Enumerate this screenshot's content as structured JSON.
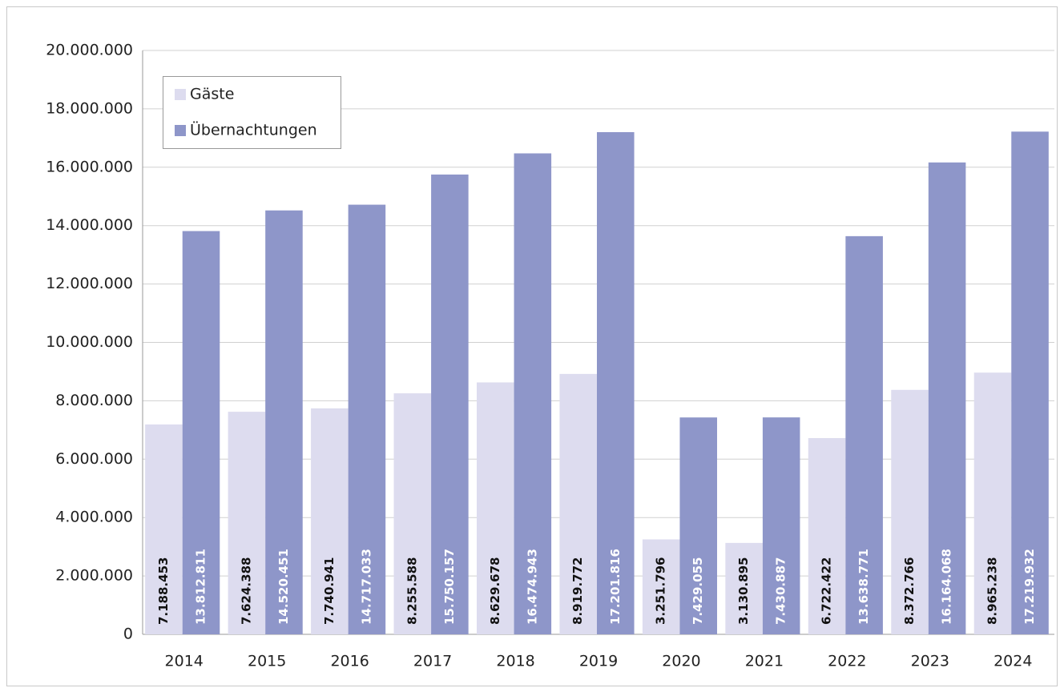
{
  "chart_data": {
    "type": "bar",
    "categories": [
      "2014",
      "2015",
      "2016",
      "2017",
      "2018",
      "2019",
      "2020",
      "2021",
      "2022",
      "2023",
      "2024"
    ],
    "series": [
      {
        "name": "Gäste",
        "color": "#dddcef",
        "values": [
          7188453,
          7624388,
          7740941,
          8255588,
          8629678,
          8919772,
          3251796,
          3130895,
          6722422,
          8372766,
          8965238
        ],
        "value_labels": [
          "7.188.453",
          "7.624.388",
          "7.740.941",
          "8.255.588",
          "8.629.678",
          "8.919.772",
          "3.251.796",
          "3.130.895",
          "6.722.422",
          "8.372.766",
          "8.965.238"
        ]
      },
      {
        "name": "Übernachtungen",
        "color": "#8e96c9",
        "values": [
          13812811,
          14520451,
          14717033,
          15750157,
          16474943,
          17201816,
          7429055,
          7430887,
          13638771,
          16164068,
          17219932
        ],
        "value_labels": [
          "13.812.811",
          "14.520.451",
          "14.717.033",
          "15.750.157",
          "16.474.943",
          "17.201.816",
          "7.429.055",
          "7.430.887",
          "13.638.771",
          "16.164.068",
          "17.219.932"
        ]
      }
    ],
    "ylim": [
      0,
      20000000
    ],
    "yticks": [
      0,
      {
        "value": 2000000,
        "label": "2.000.000"
      },
      {
        "value": 4000000,
        "label": "4.000.000"
      },
      {
        "value": 6000000,
        "label": "6.000.000"
      },
      {
        "value": 8000000,
        "label": "8.000.000"
      },
      {
        "value": 10000000,
        "label": "10.000.000"
      },
      {
        "value": 12000000,
        "label": "12.000.000"
      },
      {
        "value": 14000000,
        "label": "14.000.000"
      },
      {
        "value": 16000000,
        "label": "16.000.000"
      },
      {
        "value": 18000000,
        "label": "18.000.000"
      },
      {
        "value": 20000000,
        "label": "20.000.000"
      }
    ],
    "grid": true,
    "legend": "top-left"
  }
}
